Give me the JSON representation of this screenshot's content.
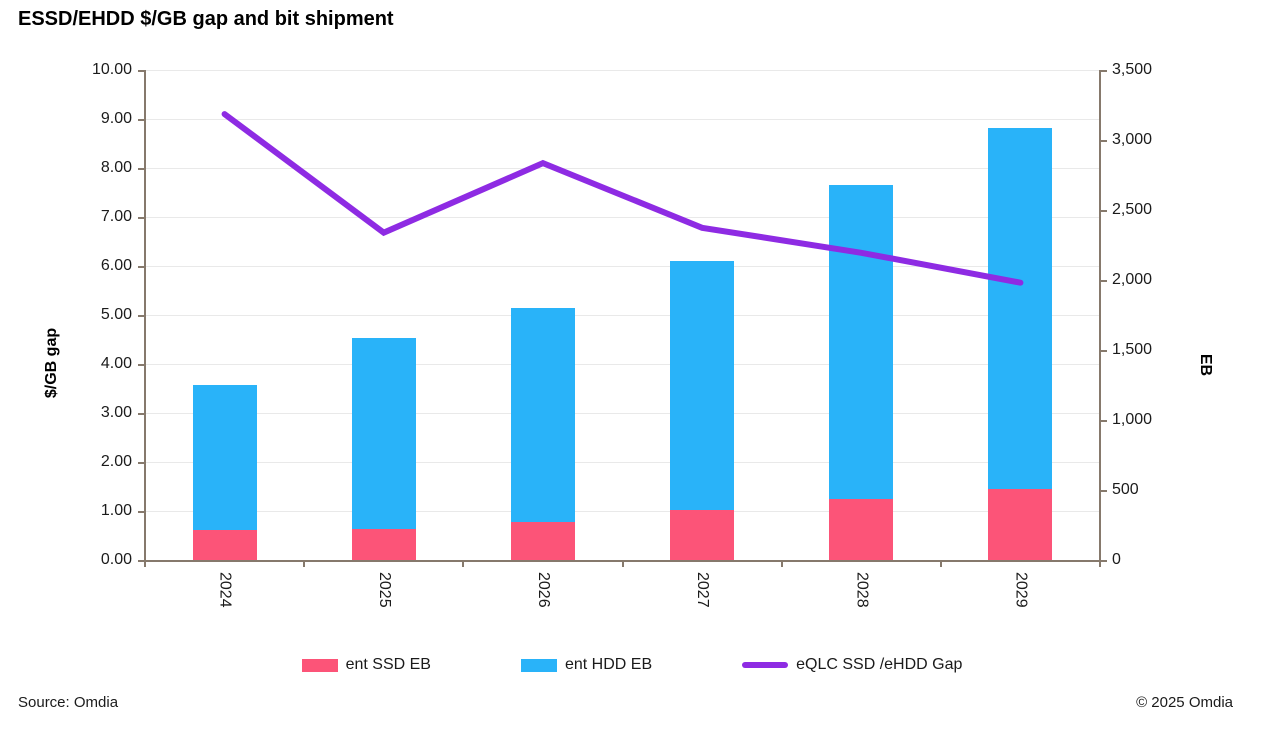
{
  "title": "ESSD/EHDD $/GB gap and bit shipment",
  "footer": {
    "source": "Source: Omdia",
    "copyright": "© 2025 Omdia"
  },
  "colors": {
    "ssd_bar": "#fc5478",
    "hdd_bar": "#29b3f9",
    "gap_line": "#8e2be3",
    "axis": "#86796c",
    "gridline": "#e9e9e9"
  },
  "chart_data": {
    "type": "bar",
    "subtype": "stacked-bars-with-line",
    "categories": [
      "2024",
      "2025",
      "2026",
      "2027",
      "2028",
      "2029"
    ],
    "series": [
      {
        "name": "ent SSD EB",
        "type": "bar",
        "axis": "right",
        "color": "#fc5478",
        "values": [
          215,
          225,
          270,
          355,
          435,
          505
        ]
      },
      {
        "name": "ent HDD EB",
        "type": "bar",
        "axis": "right",
        "color": "#29b3f9",
        "values": [
          1035,
          1360,
          1530,
          1780,
          2245,
          2580
        ]
      },
      {
        "name": "eQLC SSD /eHDD Gap",
        "type": "line",
        "axis": "left",
        "color": "#8e2be3",
        "values": [
          9.1,
          6.68,
          8.1,
          6.78,
          6.27,
          5.66
        ]
      }
    ],
    "stacked_bar_totals_eb": [
      1250,
      1585,
      1800,
      2135,
      2680,
      3085
    ],
    "left_axis": {
      "title": "$/GB gap",
      "min": 0,
      "max": 10,
      "step": 1,
      "format": "2dp"
    },
    "right_axis": {
      "title": "EB",
      "min": 0,
      "max": 3500,
      "step": 500,
      "format": "thousands-comma"
    },
    "grid": "horizontal",
    "legend_position": "bottom"
  }
}
